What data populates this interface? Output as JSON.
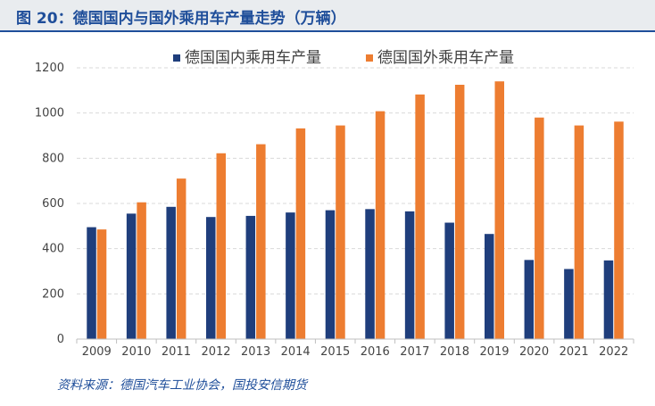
{
  "title": "图 20：德国国内与国外乘用车产量走势（万辆）",
  "source": "资料来源：德国汽车工业协会，国投安信期货",
  "colors": {
    "domestic": "#1f3e7c",
    "foreign": "#ed7d31",
    "title": "#1f4e9a"
  },
  "chart_data": {
    "type": "bar",
    "title": "",
    "xlabel": "",
    "ylabel": "",
    "ylim": [
      0,
      1200
    ],
    "yticks": [
      0,
      200,
      400,
      600,
      800,
      1000,
      1200
    ],
    "grid": true,
    "legend": "top-center",
    "categories": [
      "2009",
      "2010",
      "2011",
      "2012",
      "2013",
      "2014",
      "2015",
      "2016",
      "2017",
      "2018",
      "2019",
      "2020",
      "2021",
      "2022"
    ],
    "series": [
      {
        "name": "德国国内乘用车产量",
        "values": [
          495,
          555,
          585,
          540,
          545,
          560,
          570,
          575,
          565,
          515,
          465,
          350,
          310,
          348
        ]
      },
      {
        "name": "德国国外乘用车产量",
        "values": [
          485,
          605,
          710,
          822,
          862,
          932,
          945,
          1008,
          1082,
          1125,
          1140,
          980,
          945,
          962
        ]
      }
    ]
  }
}
